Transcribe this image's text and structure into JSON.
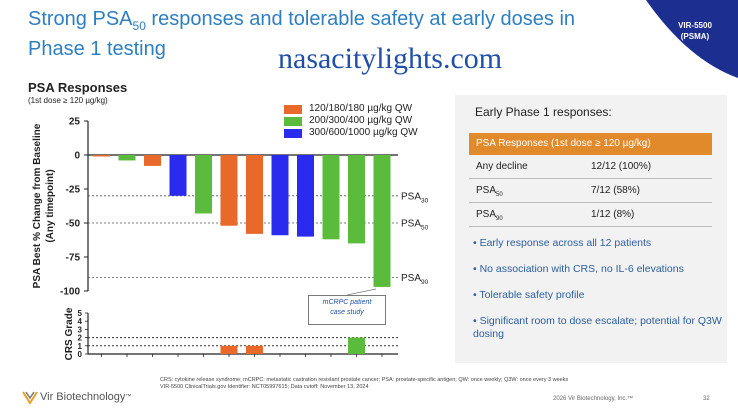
{
  "header": {
    "title_part1": "Strong PSA",
    "title_sub": "50",
    "title_part2": " responses and tolerable safety at early doses in Phase 1 testing",
    "corner_line1": "VIR-5500",
    "corner_line2": "(PSMA)",
    "watermark": "nasacitylights.com"
  },
  "section": {
    "title": "PSA Responses",
    "subtitle": "(1st dose ≥ 120 µg/kg)"
  },
  "legend": [
    {
      "label": "120/180/180 µg/kg QW",
      "color": "#e8692a"
    },
    {
      "label": "200/300/400 µg/kg QW",
      "color": "#5abb3c"
    },
    {
      "label": "300/600/1000 µg/kg QW",
      "color": "#2b2bf0"
    }
  ],
  "chart_data": [
    {
      "type": "bar",
      "ylabel": "PSA Best % Change from Baseline (Any timepoint)",
      "ylim": [
        -100,
        25
      ],
      "yticks": [
        "25",
        "0",
        "-25",
        "-50",
        "-75",
        "-100"
      ],
      "ytick_values": [
        25,
        0,
        -25,
        -50,
        -75,
        -100
      ],
      "values": [
        -1,
        -4,
        -8,
        -30,
        -43,
        -52,
        -58,
        -59,
        -60,
        -62,
        -65,
        -97
      ],
      "colors": [
        "#e8692a",
        "#5abb3c",
        "#e8692a",
        "#2b2bf0",
        "#5abb3c",
        "#e8692a",
        "#e8692a",
        "#2b2bf0",
        "#2b2bf0",
        "#5abb3c",
        "#5abb3c",
        "#5abb3c"
      ],
      "reference_lines": [
        {
          "label_main": "PSA",
          "label_sub": "30",
          "value": -30
        },
        {
          "label_main": "PSA",
          "label_sub": "50",
          "value": -50
        },
        {
          "label_main": "PSA",
          "label_sub": "90",
          "value": -90
        }
      ]
    },
    {
      "type": "bar",
      "ylabel": "CRS Grade",
      "ylim": [
        0,
        5
      ],
      "yticks": [
        "5",
        "4",
        "3",
        "2",
        "1",
        "0"
      ],
      "ytick_values": [
        5,
        4,
        3,
        2,
        1,
        0
      ],
      "values": [
        0,
        0,
        0,
        0,
        0,
        1,
        1,
        0,
        0,
        0,
        2,
        0
      ],
      "colors": [
        "#e8692a",
        "#5abb3c",
        "#e8692a",
        "#2b2bf0",
        "#5abb3c",
        "#e8692a",
        "#e8692a",
        "#2b2bf0",
        "#2b2bf0",
        "#5abb3c",
        "#5abb3c",
        "#5abb3c"
      ]
    }
  ],
  "callout": {
    "line1": "mCRPC patient",
    "line2": "case study"
  },
  "panel": {
    "title": "Early Phase 1 responses:",
    "table_header": "PSA Responses (1st dose ≥ 120 µg/kg)",
    "rows": [
      {
        "label": "Any decline",
        "label_sub": "",
        "value": "12/12 (100%)"
      },
      {
        "label": "PSA",
        "label_sub": "50",
        "value": "7/12 (58%)"
      },
      {
        "label": "PSA",
        "label_sub": "90",
        "value": "1/12 (8%)"
      }
    ],
    "bullets": [
      "• Early response across all 12 patients",
      "• No association with CRS, no IL-6 elevations",
      "• Tolerable safety profile",
      "• Significant room to dose escalate; potential for Q3W dosing"
    ]
  },
  "footer": {
    "line1": "CRS: cytokine release syndrome; mCRPC: metastatic castration resistant prostate cancer; PSA: prostate-specific antigen; QW: once weekly; Q3W: once every 3 weeks",
    "line2": "VIR-5500 ClinicalTrials.gov Identifier: NCT05997615; Data cutoff: November 13, 2024",
    "logo_text": "Vir Biotechnology",
    "logo_tm": "™",
    "copyright": "2026 Vir Biotechnology, Inc.™",
    "page_number": "32"
  },
  "colors": {
    "brand_blue": "#2e7fc1",
    "navy": "#1c2e8f",
    "orange": "#e8692a",
    "green": "#5abb3c",
    "blue": "#2b2bf0",
    "bullet_text": "#2b5f9e"
  }
}
